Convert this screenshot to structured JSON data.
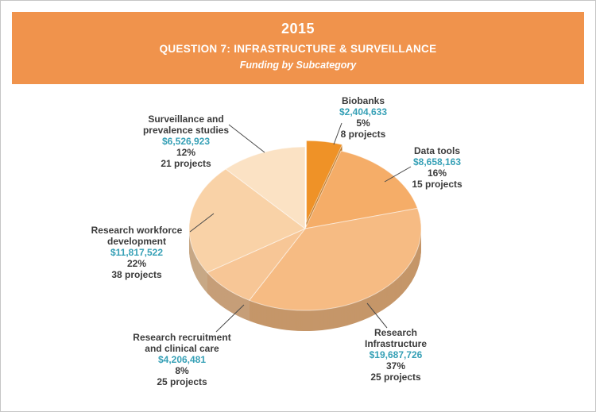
{
  "header": {
    "year": "2015",
    "title": "QUESTION 7: INFRASTRUCTURE & SURVEILLANCE",
    "subtitle": "Funding by Subcategory",
    "background": "#F0934C"
  },
  "chart_data": {
    "type": "pie",
    "title": "2015 Question 7: Infrastructure & Surveillance — Funding by Subcategory",
    "legend_position": "callout-labels",
    "amount_color": "#36A0B6",
    "start_angle_deg": -90,
    "direction": "clockwise",
    "slices": [
      {
        "label": "Biobanks",
        "amount": "$2,404,633",
        "percent": "5%",
        "projects": "8 projects",
        "value": 5,
        "value_usd": 2404633,
        "projects_count": 8,
        "color": "#EF9227",
        "exploded": true
      },
      {
        "label": "Data tools",
        "amount": "$8,658,163",
        "percent": "16%",
        "projects": "15 projects",
        "value": 16,
        "value_usd": 8658163,
        "projects_count": 15,
        "color": "#F5AD68",
        "exploded": false
      },
      {
        "label": "Research Infrastructure",
        "amount": "$19,687,726",
        "percent": "37%",
        "projects": "25 projects",
        "value": 37,
        "value_usd": 19687726,
        "projects_count": 25,
        "color": "#F6BB83",
        "exploded": false
      },
      {
        "label": "Research recruitment and clinical care",
        "amount": "$4,206,481",
        "percent": "8%",
        "projects": "25 projects",
        "value": 8,
        "value_usd": 4206481,
        "projects_count": 25,
        "color": "#F7C696",
        "exploded": false
      },
      {
        "label": "Research workforce development",
        "amount": "$11,817,522",
        "percent": "22%",
        "projects": "38 projects",
        "value": 22,
        "value_usd": 11817522,
        "projects_count": 38,
        "color": "#F9D2A7",
        "exploded": false
      },
      {
        "label": "Surveillance and prevalence studies",
        "amount": "$6,526,923",
        "percent": "12%",
        "projects": "21 projects",
        "value": 12,
        "value_usd": 6526923,
        "projects_count": 21,
        "color": "#FBE2C4",
        "exploded": false
      }
    ]
  }
}
